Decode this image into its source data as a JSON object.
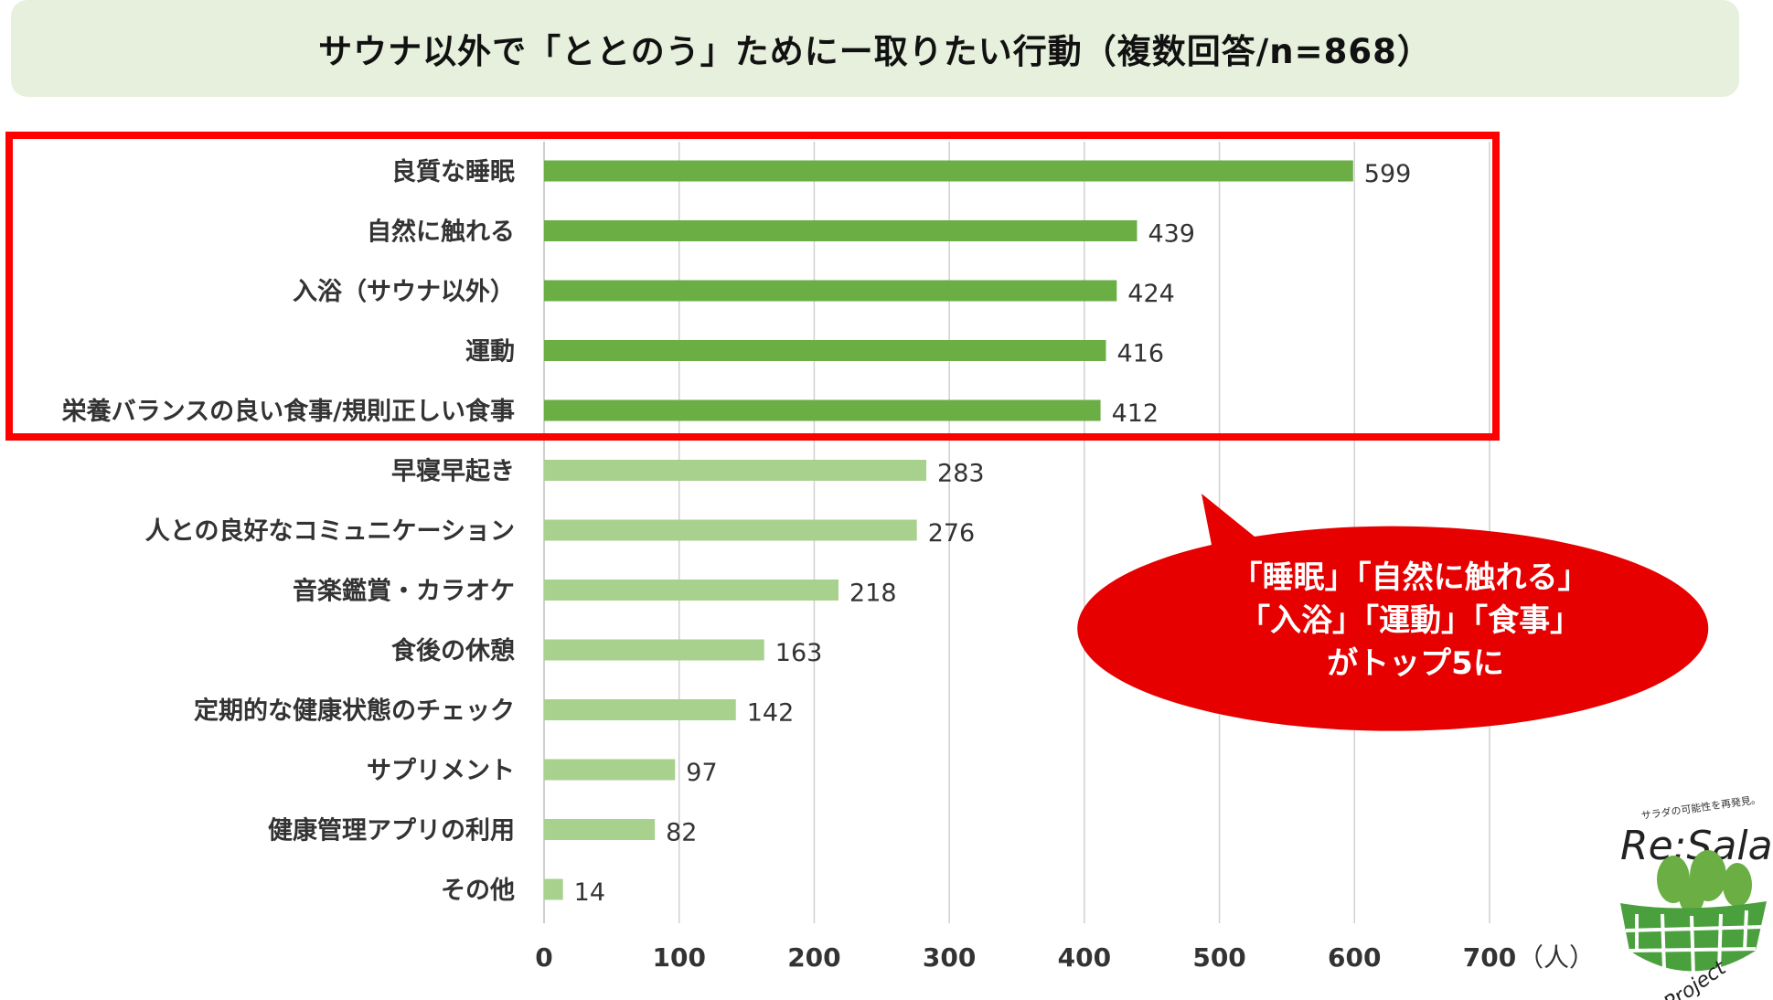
{
  "title": "サウナ以外で「ととのう」ためにー取りたい行動（複数回答/n=868）",
  "chart_data": {
    "type": "bar",
    "orientation": "horizontal",
    "categories": [
      "良質な睡眠",
      "自然に触れる",
      "入浴（サウナ以外）",
      "運動",
      "栄養バランスの良い食事/規則正しい食事",
      "早寝早起き",
      "人との良好なコミュニケーション",
      "音楽鑑賞・カラオケ",
      "食後の休憩",
      "定期的な健康状態のチェック",
      "サプリメント",
      "健康管理アプリの利用",
      "その他"
    ],
    "values": [
      599,
      439,
      424,
      416,
      412,
      283,
      276,
      218,
      163,
      142,
      97,
      82,
      14
    ],
    "highlight_top": 5,
    "xlim": [
      0,
      700
    ],
    "xticks": [
      "0",
      "100",
      "200",
      "300",
      "400",
      "500",
      "600",
      "700"
    ],
    "unit": "（人）",
    "grid": true,
    "colors": {
      "highlight": "#6aae44",
      "normal": "#a9d18e",
      "grid": "#d0d0d0"
    }
  },
  "highlight_box": {
    "color": "#ff0000"
  },
  "callout": {
    "lines": [
      "「睡眠」「自然に触れる」",
      "「入浴」「運動」「食事」",
      "がトップ5に"
    ],
    "color": "#e60000"
  },
  "logo": {
    "tagline": "サラダの可能性を再発見。",
    "name": "Re:Salad",
    "sub": "Project"
  }
}
